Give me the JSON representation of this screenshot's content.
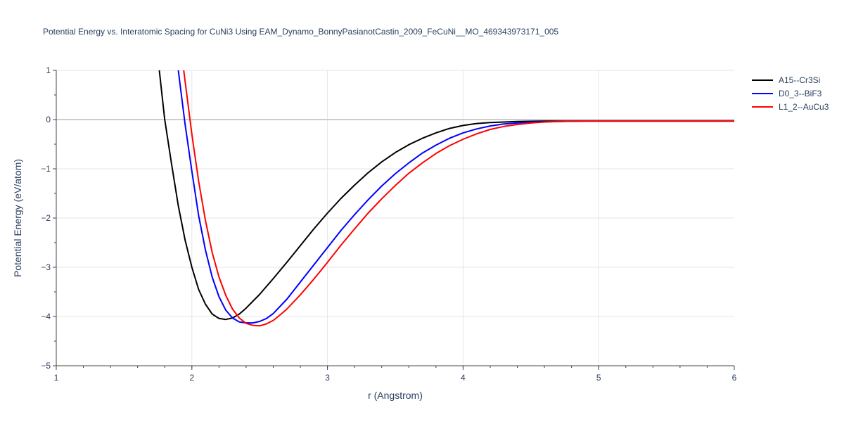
{
  "chart_data": {
    "type": "line",
    "title": "Potential Energy vs. Interatomic Spacing for CuNi3 Using EAM_Dynamo_BonnyPasianotCastin_2009_FeCuNi__MO_469343973171_005",
    "xlabel": "r (Angstrom)",
    "ylabel": "Potential Energy (eV/atom)",
    "xlim": [
      1,
      6
    ],
    "ylim": [
      -5,
      1
    ],
    "x_ticks": [
      "1",
      "2",
      "3",
      "4",
      "5",
      "6"
    ],
    "y_ticks": [
      "1",
      "0",
      "−1",
      "−2",
      "−3",
      "−4",
      "−5"
    ],
    "grid": true,
    "legend_position": "top-right",
    "series": [
      {
        "name": "A15--Cr3Si",
        "color": "#000000",
        "x": [
          1.76,
          1.8,
          1.85,
          1.9,
          1.95,
          2.0,
          2.05,
          2.1,
          2.15,
          2.2,
          2.25,
          2.3,
          2.35,
          2.4,
          2.5,
          2.6,
          2.7,
          2.8,
          2.9,
          3.0,
          3.1,
          3.2,
          3.3,
          3.4,
          3.5,
          3.6,
          3.7,
          3.8,
          3.9,
          4.0,
          4.1,
          4.2,
          4.3,
          4.4,
          4.5,
          4.6,
          4.7,
          4.8,
          5.0,
          5.2,
          5.5,
          6.0
        ],
        "y": [
          1.0,
          0.0,
          -0.9,
          -1.75,
          -2.45,
          -3.0,
          -3.45,
          -3.75,
          -3.95,
          -4.04,
          -4.06,
          -4.03,
          -3.95,
          -3.83,
          -3.55,
          -3.23,
          -2.9,
          -2.56,
          -2.22,
          -1.9,
          -1.6,
          -1.33,
          -1.08,
          -0.86,
          -0.67,
          -0.51,
          -0.38,
          -0.27,
          -0.18,
          -0.12,
          -0.08,
          -0.06,
          -0.05,
          -0.04,
          -0.035,
          -0.03,
          -0.03,
          -0.03,
          -0.03,
          -0.03,
          -0.03,
          -0.03
        ]
      },
      {
        "name": "D0_3--BiF3",
        "color": "#0000ff",
        "x": [
          1.9,
          1.95,
          2.0,
          2.05,
          2.1,
          2.15,
          2.2,
          2.25,
          2.3,
          2.35,
          2.4,
          2.45,
          2.5,
          2.55,
          2.6,
          2.7,
          2.8,
          2.9,
          3.0,
          3.1,
          3.2,
          3.3,
          3.4,
          3.5,
          3.6,
          3.7,
          3.8,
          3.9,
          4.0,
          4.1,
          4.2,
          4.3,
          4.4,
          4.5,
          4.6,
          4.7,
          4.8,
          4.9,
          5.0,
          5.2,
          5.5,
          6.0
        ],
        "y": [
          1.0,
          -0.1,
          -1.05,
          -1.95,
          -2.65,
          -3.2,
          -3.6,
          -3.87,
          -4.03,
          -4.11,
          -4.13,
          -4.13,
          -4.1,
          -4.04,
          -3.94,
          -3.65,
          -3.3,
          -2.95,
          -2.6,
          -2.25,
          -1.93,
          -1.63,
          -1.35,
          -1.1,
          -0.88,
          -0.68,
          -0.52,
          -0.38,
          -0.27,
          -0.19,
          -0.13,
          -0.09,
          -0.07,
          -0.05,
          -0.045,
          -0.04,
          -0.035,
          -0.03,
          -0.03,
          -0.03,
          -0.03,
          -0.03
        ]
      },
      {
        "name": "L1_2--AuCu3",
        "color": "#ff0000",
        "x": [
          1.94,
          2.0,
          2.05,
          2.1,
          2.15,
          2.2,
          2.25,
          2.3,
          2.35,
          2.4,
          2.45,
          2.5,
          2.55,
          2.6,
          2.65,
          2.7,
          2.8,
          2.9,
          3.0,
          3.1,
          3.2,
          3.3,
          3.4,
          3.5,
          3.6,
          3.7,
          3.8,
          3.9,
          4.0,
          4.1,
          4.2,
          4.3,
          4.4,
          4.5,
          4.6,
          4.7,
          4.8,
          4.9,
          5.0,
          5.2,
          5.5,
          6.0
        ],
        "y": [
          1.0,
          -0.3,
          -1.25,
          -2.05,
          -2.7,
          -3.2,
          -3.57,
          -3.85,
          -4.03,
          -4.14,
          -4.18,
          -4.19,
          -4.15,
          -4.08,
          -3.97,
          -3.85,
          -3.56,
          -3.24,
          -2.9,
          -2.55,
          -2.22,
          -1.9,
          -1.61,
          -1.34,
          -1.09,
          -0.88,
          -0.69,
          -0.53,
          -0.4,
          -0.29,
          -0.2,
          -0.14,
          -0.1,
          -0.07,
          -0.05,
          -0.04,
          -0.035,
          -0.03,
          -0.03,
          -0.03,
          -0.03,
          -0.03
        ]
      }
    ]
  }
}
